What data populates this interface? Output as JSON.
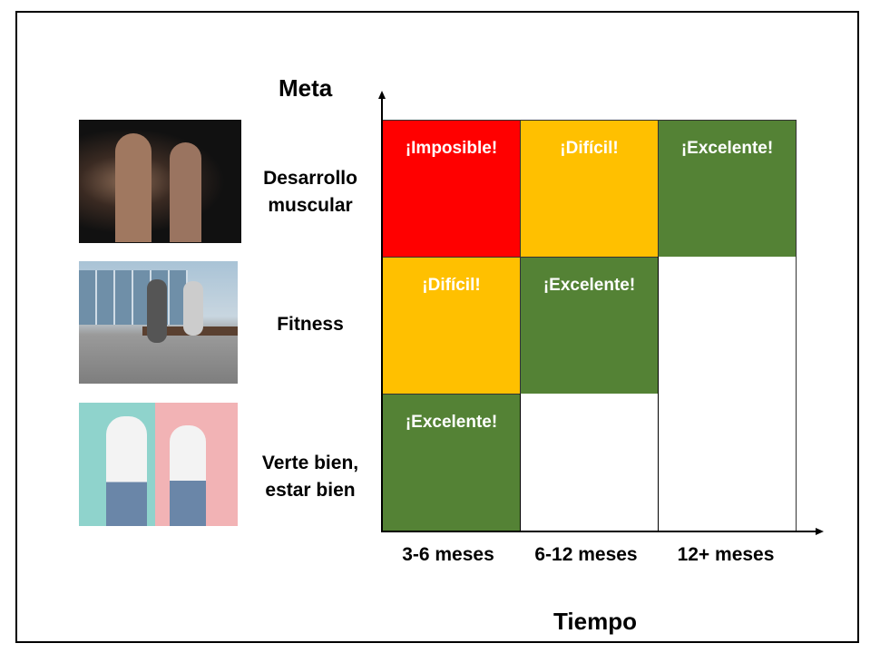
{
  "y_axis_title": "Meta",
  "x_axis_title": "Tiempo",
  "rows": [
    {
      "label": "Desarrollo\nmuscular",
      "photo": "couple-bodybuilders-photo"
    },
    {
      "label": "Fitness",
      "photo": "outdoor-workout-photo"
    },
    {
      "label": "Verte bien,\nestar bien",
      "photo": "casual-couple-photo"
    }
  ],
  "columns": [
    "3-6 meses",
    "6-12 meses",
    "12+ meses"
  ],
  "cells": [
    [
      {
        "text": "¡Imposible!",
        "color": "#FF0000"
      },
      {
        "text": "¡Difícil!",
        "color": "#FFC000"
      },
      {
        "text": "¡Excelente!",
        "color": "#548235"
      }
    ],
    [
      {
        "text": "¡Difícil!",
        "color": "#FFC000"
      },
      {
        "text": "¡Excelente!",
        "color": "#548235"
      },
      {
        "text": "",
        "color": "#FFFFFF"
      }
    ],
    [
      {
        "text": "¡Excelente!",
        "color": "#548235"
      },
      {
        "text": "",
        "color": "#FFFFFF"
      },
      {
        "text": "",
        "color": "#FFFFFF"
      }
    ]
  ]
}
